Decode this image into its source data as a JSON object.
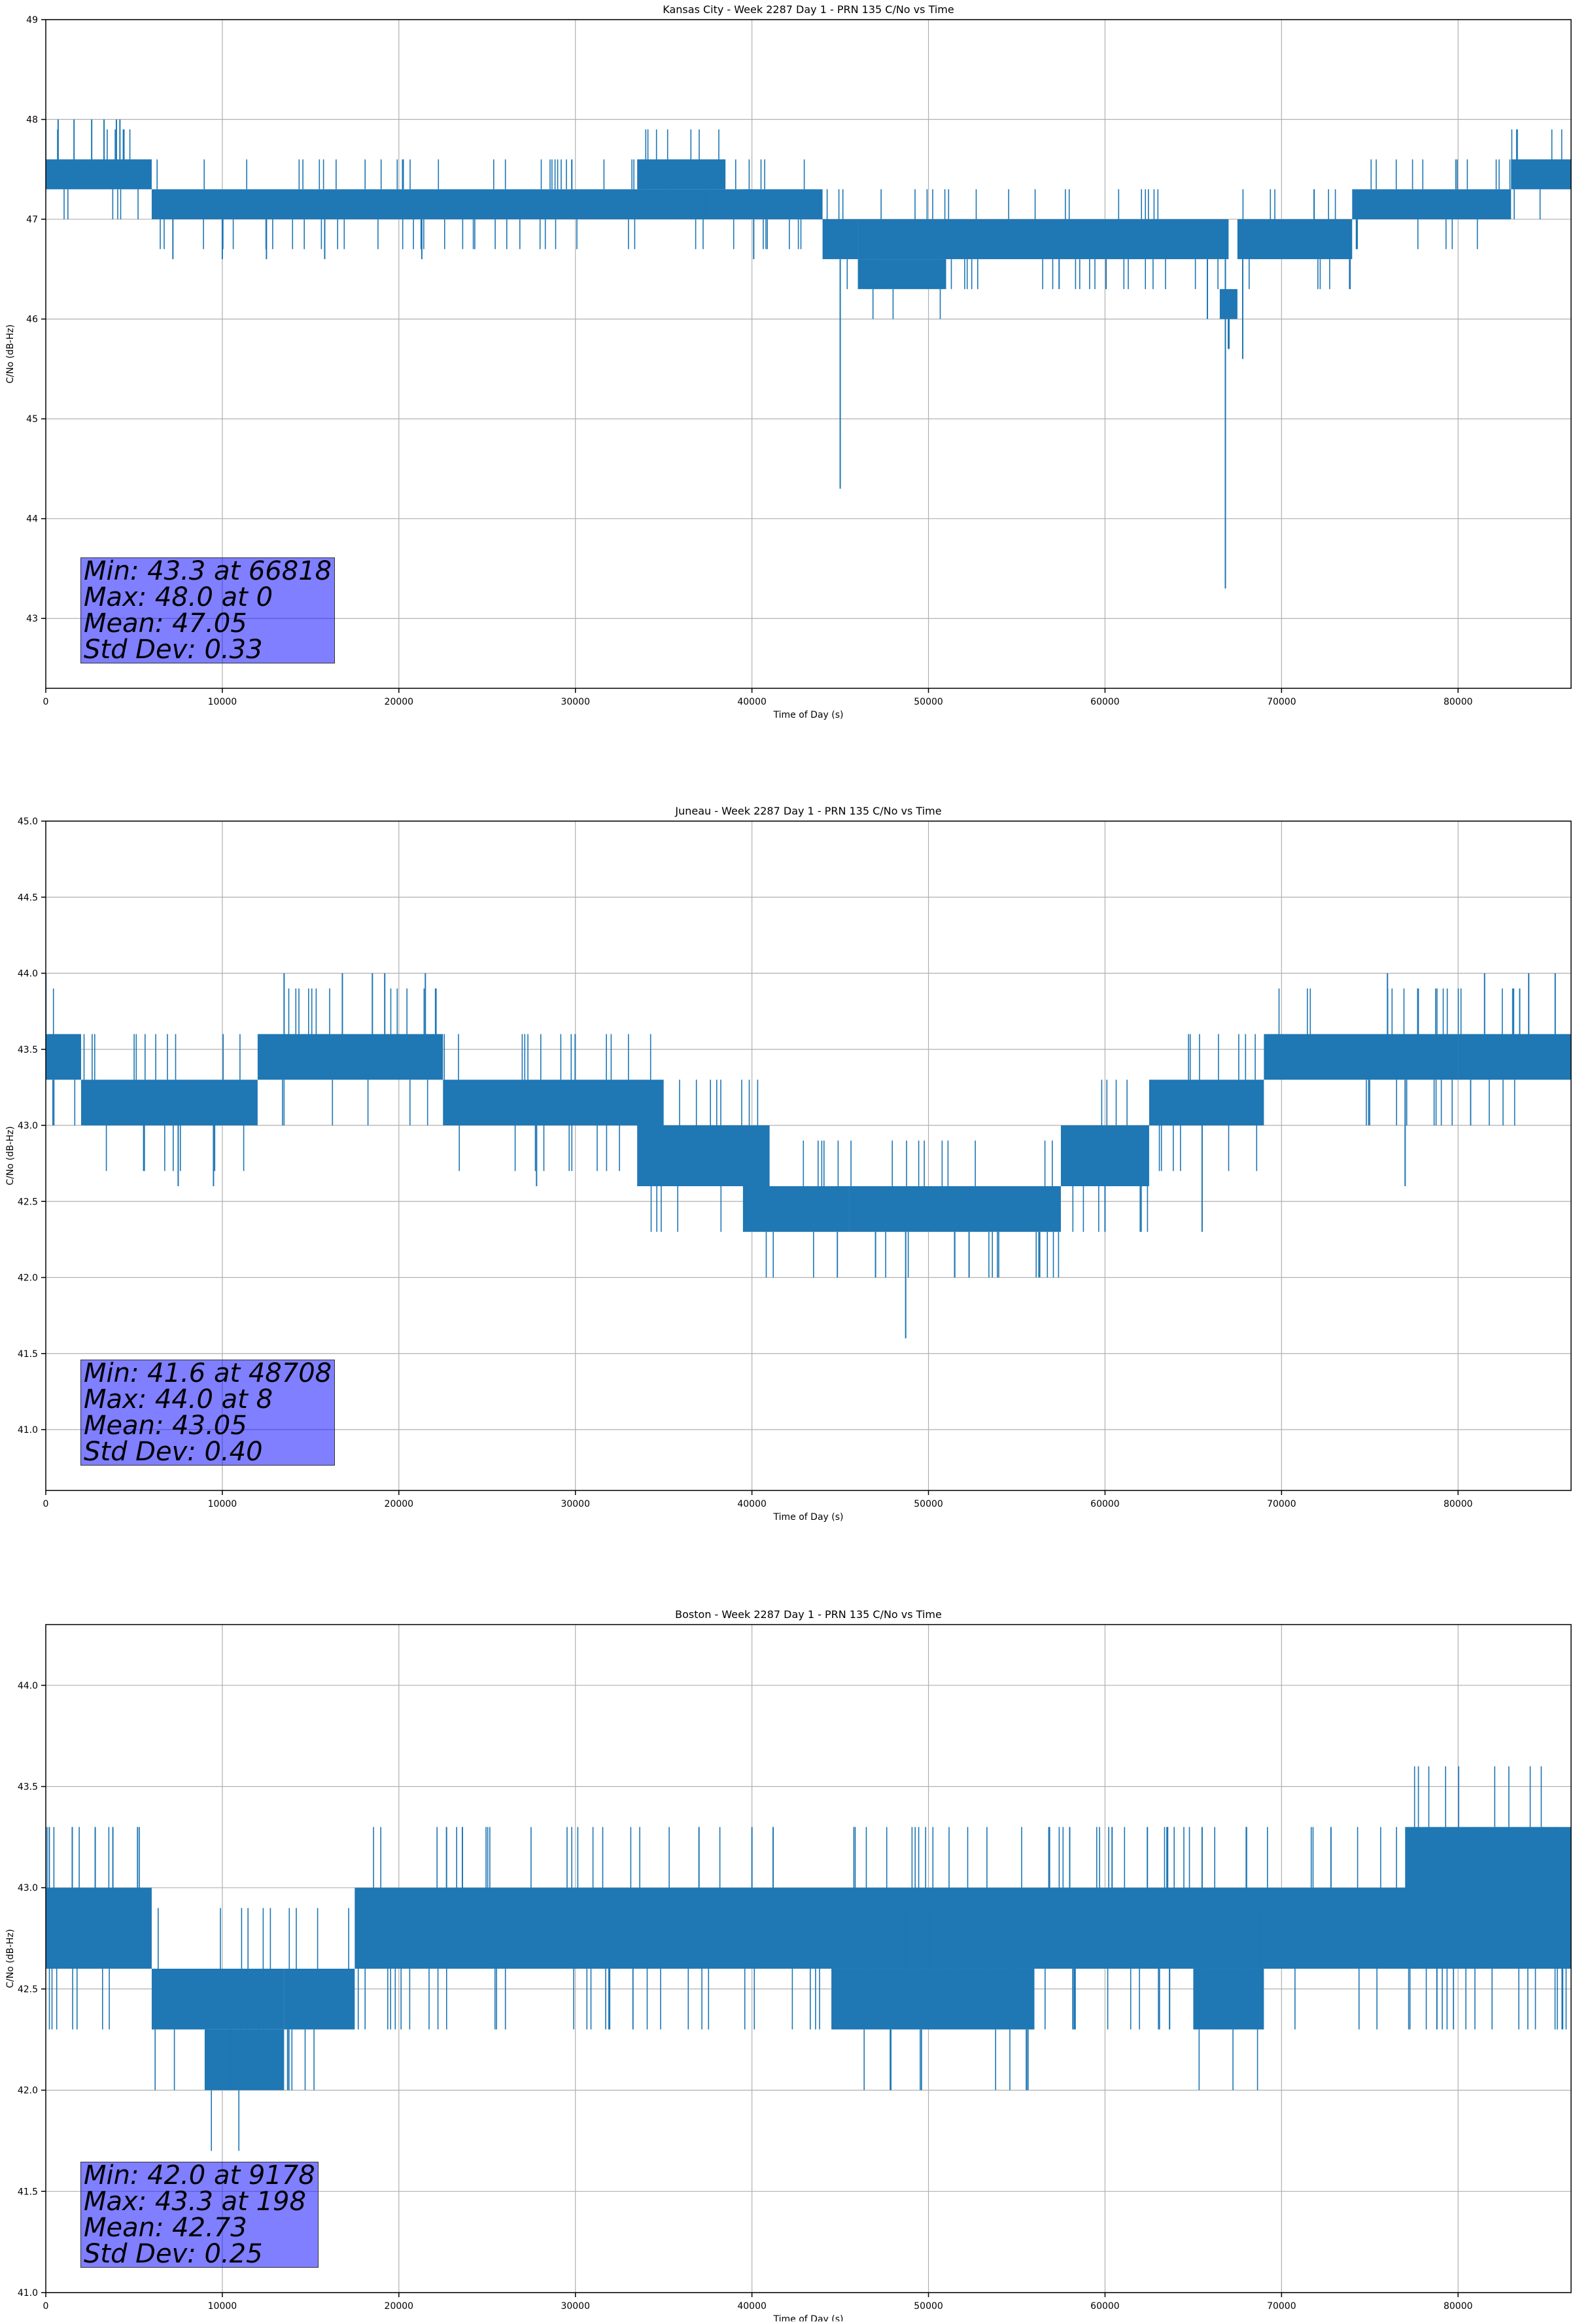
{
  "colors": {
    "series": "#1f77b4",
    "grid": "#b0b0b0",
    "stats_box": "#8080ff"
  },
  "chart_data": [
    {
      "type": "line",
      "title": "Kansas City - Week 2287 Day 1 - PRN 135 C/No vs Time",
      "xlabel": "Time of Day (s)",
      "ylabel": "C/No (dB-Hz)",
      "xlim": [
        0,
        86400
      ],
      "ylim": [
        42.3,
        49.0
      ],
      "xticks": [
        0,
        10000,
        20000,
        30000,
        40000,
        50000,
        60000,
        70000,
        80000
      ],
      "yticks": [
        43,
        44,
        45,
        46,
        47,
        48,
        49
      ],
      "ytick_labels": [
        "43",
        "44",
        "45",
        "46",
        "47",
        "48",
        "49"
      ],
      "grid": true,
      "stats": [
        "Min: 43.3 at 66818",
        "Max: 48.0 at 0",
        "Mean: 47.05",
        "Std Dev: 0.33"
      ],
      "bands": [
        {
          "x": [
            0,
            6000
          ],
          "lo": 47.3,
          "hi": 47.6
        },
        {
          "x": [
            6000,
            40000
          ],
          "lo": 47.0,
          "hi": 47.3
        },
        {
          "x": [
            33500,
            38500
          ],
          "lo": 47.3,
          "hi": 47.6
        },
        {
          "x": [
            39500,
            44000
          ],
          "lo": 47.0,
          "hi": 47.3
        },
        {
          "x": [
            44000,
            46000
          ],
          "lo": 46.6,
          "hi": 47.0
        },
        {
          "x": [
            46000,
            51000
          ],
          "lo": 46.3,
          "hi": 46.6
        },
        {
          "x": [
            46000,
            67000
          ],
          "lo": 46.6,
          "hi": 47.0
        },
        {
          "x": [
            66500,
            67500
          ],
          "lo": 46.0,
          "hi": 46.3
        },
        {
          "x": [
            67500,
            74000
          ],
          "lo": 46.6,
          "hi": 47.0
        },
        {
          "x": [
            74000,
            83000
          ],
          "lo": 47.0,
          "hi": 47.3
        },
        {
          "x": [
            83000,
            86400
          ],
          "lo": 47.3,
          "hi": 47.6
        }
      ],
      "spikes": [
        {
          "x": 45000,
          "y": 44.3
        },
        {
          "x": 66818,
          "y": 43.3
        },
        {
          "x": 67800,
          "y": 45.6
        },
        {
          "x": 0,
          "y": 48.0
        },
        {
          "x": 700,
          "y": 48.0
        },
        {
          "x": 1600,
          "y": 48.0
        },
        {
          "x": 2600,
          "y": 48.0
        },
        {
          "x": 3300,
          "y": 48.0
        },
        {
          "x": 4000,
          "y": 48.0
        },
        {
          "x": 4200,
          "y": 48.0
        },
        {
          "x": 7200,
          "y": 46.6
        },
        {
          "x": 10000,
          "y": 46.6
        },
        {
          "x": 12500,
          "y": 46.6
        },
        {
          "x": 15800,
          "y": 46.6
        },
        {
          "x": 21300,
          "y": 46.6
        },
        {
          "x": 40100,
          "y": 46.6
        },
        {
          "x": 57400,
          "y": 46.3
        },
        {
          "x": 65800,
          "y": 46.0
        }
      ]
    },
    {
      "type": "line",
      "title": "Juneau - Week 2287 Day 1 - PRN 135 C/No vs Time",
      "xlabel": "Time of Day (s)",
      "ylabel": "C/No (dB-Hz)",
      "xlim": [
        0,
        86400
      ],
      "ylim": [
        40.6,
        45.0
      ],
      "xticks": [
        0,
        10000,
        20000,
        30000,
        40000,
        50000,
        60000,
        70000,
        80000
      ],
      "yticks": [
        41.0,
        41.5,
        42.0,
        42.5,
        43.0,
        43.5,
        44.0,
        44.5,
        45.0
      ],
      "ytick_labels": [
        "41.0",
        "41.5",
        "42.0",
        "42.5",
        "43.0",
        "43.5",
        "44.0",
        "44.5",
        "45.0"
      ],
      "grid": true,
      "stats": [
        "Min: 41.6 at 48708",
        "Max: 44.0 at 8",
        "Mean: 43.05",
        "Std Dev: 0.40"
      ],
      "bands": [
        {
          "x": [
            0,
            2000
          ],
          "lo": 43.3,
          "hi": 43.6
        },
        {
          "x": [
            2000,
            12000
          ],
          "lo": 43.0,
          "hi": 43.3
        },
        {
          "x": [
            12000,
            22500
          ],
          "lo": 43.3,
          "hi": 43.6
        },
        {
          "x": [
            22500,
            35000
          ],
          "lo": 43.0,
          "hi": 43.3
        },
        {
          "x": [
            33500,
            41000
          ],
          "lo": 42.6,
          "hi": 43.0
        },
        {
          "x": [
            39500,
            45500
          ],
          "lo": 42.3,
          "hi": 42.6
        },
        {
          "x": [
            45500,
            57500
          ],
          "lo": 42.3,
          "hi": 42.6
        },
        {
          "x": [
            57500,
            62500
          ],
          "lo": 42.6,
          "hi": 43.0
        },
        {
          "x": [
            62500,
            69000
          ],
          "lo": 43.0,
          "hi": 43.3
        },
        {
          "x": [
            69000,
            80000
          ],
          "lo": 43.3,
          "hi": 43.6
        },
        {
          "x": [
            80000,
            86400
          ],
          "lo": 43.3,
          "hi": 43.6
        }
      ],
      "spikes": [
        {
          "x": 8,
          "y": 44.0
        },
        {
          "x": 13500,
          "y": 44.0
        },
        {
          "x": 16800,
          "y": 44.0
        },
        {
          "x": 18500,
          "y": 44.0
        },
        {
          "x": 19200,
          "y": 44.0
        },
        {
          "x": 21500,
          "y": 44.0
        },
        {
          "x": 48708,
          "y": 41.6
        },
        {
          "x": 47000,
          "y": 42.0
        },
        {
          "x": 52300,
          "y": 42.0
        },
        {
          "x": 56300,
          "y": 42.0
        },
        {
          "x": 60000,
          "y": 42.3
        },
        {
          "x": 65500,
          "y": 42.3
        },
        {
          "x": 76000,
          "y": 44.0
        },
        {
          "x": 81500,
          "y": 44.0
        },
        {
          "x": 84000,
          "y": 44.0
        },
        {
          "x": 85500,
          "y": 44.0
        },
        {
          "x": 7500,
          "y": 42.6
        },
        {
          "x": 9500,
          "y": 42.6
        },
        {
          "x": 27800,
          "y": 42.6
        },
        {
          "x": 41500,
          "y": 42.3
        },
        {
          "x": 77000,
          "y": 42.6
        }
      ]
    },
    {
      "type": "line",
      "title": "Boston - Week 2287 Day 1 - PRN 135 C/No vs Time",
      "xlabel": "Time of Day (s)",
      "ylabel": "C/No (dB-Hz)",
      "xlim": [
        0,
        86400
      ],
      "ylim": [
        41.0,
        44.3
      ],
      "xticks": [
        0,
        10000,
        20000,
        30000,
        40000,
        50000,
        60000,
        70000,
        80000
      ],
      "yticks": [
        41.0,
        41.5,
        42.0,
        42.5,
        43.0,
        43.5,
        44.0
      ],
      "ytick_labels": [
        "41.0",
        "41.5",
        "42.0",
        "42.5",
        "43.0",
        "43.5",
        "44.0"
      ],
      "grid": true,
      "stats": [
        "Min: 42.0 at 9178",
        "Max: 43.3 at 198",
        "Mean: 42.73",
        "Std Dev: 0.25"
      ],
      "bands": [
        {
          "x": [
            0,
            6000
          ],
          "lo": 42.6,
          "hi": 43.0
        },
        {
          "x": [
            6000,
            13500
          ],
          "lo": 42.3,
          "hi": 42.6
        },
        {
          "x": [
            9000,
            13500
          ],
          "lo": 42.0,
          "hi": 42.3
        },
        {
          "x": [
            13500,
            17500
          ],
          "lo": 42.3,
          "hi": 42.6
        },
        {
          "x": [
            17500,
            86400
          ],
          "lo": 42.6,
          "hi": 43.0
        },
        {
          "x": [
            44500,
            56000
          ],
          "lo": 42.3,
          "hi": 42.6
        },
        {
          "x": [
            65000,
            69000
          ],
          "lo": 42.3,
          "hi": 42.6
        },
        {
          "x": [
            77000,
            86400
          ],
          "lo": 42.6,
          "hi": 43.3
        }
      ],
      "spikes": [
        {
          "x": 198,
          "y": 43.3
        },
        {
          "x": 1500,
          "y": 43.3
        },
        {
          "x": 2800,
          "y": 43.3
        },
        {
          "x": 3800,
          "y": 43.3
        },
        {
          "x": 5200,
          "y": 43.3
        },
        {
          "x": 9178,
          "y": 42.0
        },
        {
          "x": 10500,
          "y": 42.0
        },
        {
          "x": 13700,
          "y": 42.0
        },
        {
          "x": 22700,
          "y": 43.3
        },
        {
          "x": 23600,
          "y": 43.3
        },
        {
          "x": 37000,
          "y": 43.3
        },
        {
          "x": 40000,
          "y": 43.3
        },
        {
          "x": 41200,
          "y": 43.3
        },
        {
          "x": 58000,
          "y": 43.3
        },
        {
          "x": 60400,
          "y": 43.3
        },
        {
          "x": 62400,
          "y": 43.3
        },
        {
          "x": 65500,
          "y": 43.3
        },
        {
          "x": 68000,
          "y": 43.3
        },
        {
          "x": 72800,
          "y": 43.3
        },
        {
          "x": 78800,
          "y": 42.3
        },
        {
          "x": 83500,
          "y": 43.3
        },
        {
          "x": 85500,
          "y": 43.3
        }
      ]
    }
  ]
}
